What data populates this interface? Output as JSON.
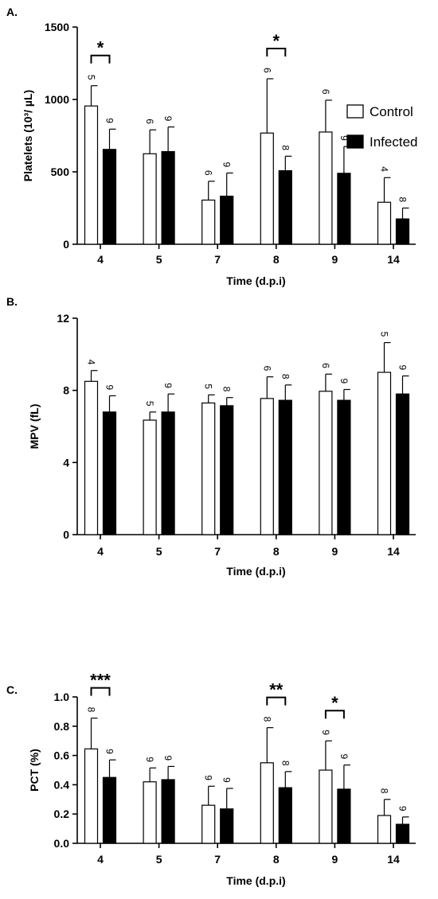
{
  "legend": {
    "position": "right",
    "entries": [
      {
        "label": "Control",
        "fill": "#ffffff"
      },
      {
        "label": "Infected",
        "fill": "#000000"
      }
    ]
  },
  "colors": {
    "control": "#ffffff",
    "infected": "#000000",
    "stroke": "#000000"
  },
  "chart_data": [
    {
      "type": "bar",
      "panel": "A.",
      "title": "",
      "xlabel": "Time (d.p.i)",
      "ylabel": "Platelets (10³/ µL)",
      "ylim": [
        0,
        1500
      ],
      "yticks": [
        0,
        500,
        1000,
        1500
      ],
      "categories": [
        "4",
        "5",
        "7",
        "8",
        "9",
        "14"
      ],
      "series": [
        {
          "name": "Control",
          "values": [
            955,
            625,
            305,
            768,
            775,
            290
          ],
          "errors": [
            140,
            165,
            130,
            375,
            220,
            170
          ],
          "n": [
            "5",
            "6",
            "6",
            "6",
            "6",
            "4"
          ]
        },
        {
          "name": "Infected",
          "values": [
            655,
            640,
            332,
            508,
            490,
            175
          ],
          "errors": [
            140,
            170,
            160,
            100,
            185,
            75
          ],
          "n": [
            "9",
            "9",
            "9",
            "8",
            "9",
            "8"
          ]
        }
      ],
      "significance": [
        {
          "category_index": 0,
          "label": "*"
        },
        {
          "category_index": 3,
          "label": "*"
        }
      ],
      "grid": false
    },
    {
      "type": "bar",
      "panel": "B.",
      "title": "",
      "xlabel": "Time (d.p.i)",
      "ylabel": "MPV (fL)",
      "ylim": [
        0,
        12
      ],
      "yticks": [
        0,
        4,
        8,
        12
      ],
      "categories": [
        "4",
        "5",
        "7",
        "8",
        "9",
        "14"
      ],
      "series": [
        {
          "name": "Control",
          "values": [
            8.5,
            6.35,
            7.3,
            7.55,
            7.95,
            9.0
          ],
          "errors": [
            0.6,
            0.45,
            0.45,
            1.2,
            0.95,
            1.65
          ],
          "n": [
            "4",
            "5",
            "5",
            "6",
            "6",
            "5"
          ]
        },
        {
          "name": "Infected",
          "values": [
            6.8,
            6.8,
            7.15,
            7.45,
            7.45,
            7.8
          ],
          "errors": [
            0.9,
            1.0,
            0.45,
            0.85,
            0.6,
            1.0
          ],
          "n": [
            "9",
            "9",
            "8",
            "8",
            "9",
            "9"
          ]
        }
      ],
      "significance": [],
      "grid": false
    },
    {
      "type": "bar",
      "panel": "C.",
      "title": "",
      "xlabel": "Time (d.p.i)",
      "ylabel": "PCT (%)",
      "ylim": [
        0,
        1.0
      ],
      "yticks": [
        0.0,
        0.2,
        0.4,
        0.6,
        0.8,
        1.0
      ],
      "ytick_labels": [
        "0.0",
        "0.2",
        "0.4",
        "0.6",
        "0.8",
        "1.0"
      ],
      "categories": [
        "4",
        "5",
        "7",
        "8",
        "9",
        "14"
      ],
      "series": [
        {
          "name": "Control",
          "values": [
            0.645,
            0.42,
            0.26,
            0.55,
            0.5,
            0.19
          ],
          "errors": [
            0.21,
            0.095,
            0.13,
            0.24,
            0.2,
            0.11
          ],
          "n": [
            "8",
            "9",
            "9",
            "8",
            "9",
            "8"
          ]
        },
        {
          "name": "Infected",
          "values": [
            0.45,
            0.435,
            0.235,
            0.38,
            0.37,
            0.13
          ],
          "errors": [
            0.12,
            0.09,
            0.14,
            0.11,
            0.165,
            0.05
          ],
          "n": [
            "9",
            "9",
            "9",
            "8",
            "9",
            "9"
          ]
        }
      ],
      "significance": [
        {
          "category_index": 0,
          "label": "***"
        },
        {
          "category_index": 3,
          "label": "**"
        },
        {
          "category_index": 4,
          "label": "*"
        }
      ],
      "grid": false
    }
  ]
}
